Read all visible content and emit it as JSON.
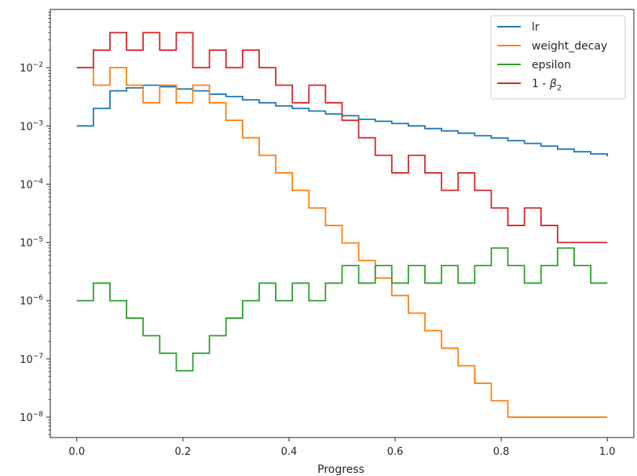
{
  "chart_data": {
    "type": "line",
    "xlabel": "Progress",
    "ylabel": "",
    "yscale": "log",
    "xlim": [
      -0.05,
      1.05
    ],
    "ylim_log10": [
      -8.35,
      -1.0
    ],
    "x_ticks": [
      0.0,
      0.2,
      0.4,
      0.6,
      0.8,
      1.0
    ],
    "x_tick_labels": [
      "0.0",
      "0.2",
      "0.4",
      "0.6",
      "0.8",
      "1.0"
    ],
    "y_tick_exponents": [
      -8,
      -7,
      -6,
      -5,
      -4,
      -3,
      -2
    ],
    "y_tick_base": "10",
    "legend_position": "top-right",
    "legend": [
      {
        "name": "lr",
        "label_text": "lr",
        "color": "#1f77b4"
      },
      {
        "name": "weight_decay",
        "label_text": "weight_decay",
        "color": "#ff7f0e"
      },
      {
        "name": "epsilon",
        "label_text": "epsilon",
        "color": "#2ca02c"
      },
      {
        "name": "one_minus_beta2",
        "label_prefix": "1 - ",
        "label_beta": "β",
        "label_sub": "2",
        "color": "#d62728"
      }
    ],
    "steps": 32,
    "x_max": 1.0,
    "series": [
      {
        "name": "lr",
        "color": "#1f77b4",
        "values": [
          0.001,
          0.002,
          0.004,
          0.0045,
          0.005,
          0.0047,
          0.0043,
          0.004,
          0.0035,
          0.0032,
          0.0028,
          0.0025,
          0.0022,
          0.002,
          0.0018,
          0.0016,
          0.0015,
          0.0013,
          0.0012,
          0.0011,
          0.001,
          0.0009,
          0.00082,
          0.00075,
          0.00068,
          0.00062,
          0.00056,
          0.0005,
          0.00045,
          0.0004,
          0.00036,
          0.00033,
          0.0003
        ]
      },
      {
        "name": "weight_decay",
        "color": "#ff7f0e",
        "values": [
          0.01,
          0.005,
          0.01,
          0.005,
          0.0025,
          0.005,
          0.0025,
          0.005,
          0.0025,
          0.00125,
          0.000625,
          0.0003125,
          0.00015625,
          7.8125e-05,
          3.90625e-05,
          1.953125e-05,
          9.765625e-06,
          4.8828125e-06,
          2.44140625e-06,
          1.220703125e-06,
          6.103515625e-07,
          3.0517578125e-07,
          1.52587890625e-07,
          7.62939453125e-08,
          3.814697265625e-08,
          1.9073486328125e-08,
          1e-08,
          1e-08,
          1e-08,
          1e-08,
          1e-08,
          1e-08,
          1e-08
        ]
      },
      {
        "name": "epsilon",
        "color": "#2ca02c",
        "values": [
          1e-06,
          2e-06,
          1e-06,
          5e-07,
          2.5e-07,
          1.25e-07,
          6.25e-08,
          1.25e-07,
          2.5e-07,
          5e-07,
          1e-06,
          2e-06,
          1e-06,
          2e-06,
          1e-06,
          2e-06,
          4e-06,
          2e-06,
          4e-06,
          2e-06,
          4e-06,
          2e-06,
          4e-06,
          2e-06,
          4e-06,
          8e-06,
          4e-06,
          2e-06,
          4e-06,
          8e-06,
          4e-06,
          2e-06,
          2e-06
        ]
      },
      {
        "name": "1 - beta2",
        "color": "#d62728",
        "values": [
          0.01,
          0.02,
          0.04,
          0.02,
          0.04,
          0.02,
          0.04,
          0.01,
          0.02,
          0.01,
          0.02,
          0.01,
          0.005,
          0.0025,
          0.005,
          0.0025,
          0.00125,
          0.000625,
          0.0003125,
          0.00015625,
          0.0003125,
          0.00015625,
          7.8125e-05,
          0.00015625,
          7.8125e-05,
          3.90625e-05,
          1.953125e-05,
          3.90625e-05,
          1.953125e-05,
          1e-05,
          1e-05,
          1e-05,
          1e-05
        ]
      }
    ]
  }
}
